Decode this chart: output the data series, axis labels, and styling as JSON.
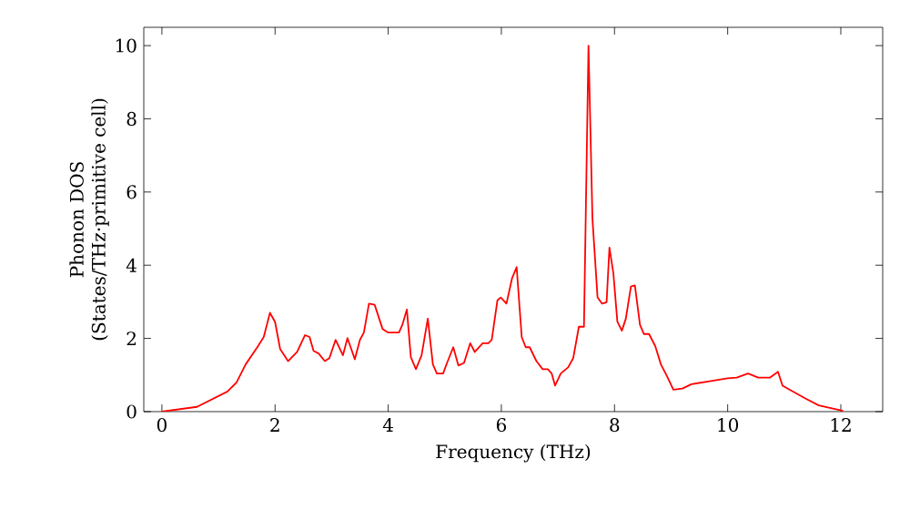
{
  "chart_data": {
    "type": "line",
    "xlabel": "Frequency (THz)",
    "ylabel": "Phonon DOS\n(States/THz·primitive cell)",
    "xlim": [
      -0.32,
      12.74
    ],
    "ylim": [
      0,
      10.5
    ],
    "xticks": [
      0,
      2,
      4,
      6,
      8,
      10,
      12
    ],
    "yticks": [
      0,
      2,
      4,
      6,
      8,
      10
    ],
    "marker": "none",
    "line_style": "solid",
    "series": [
      {
        "color": "#ff0000",
        "x": [
          0,
          0.62,
          1.16,
          1.32,
          1.48,
          1.7,
          1.8,
          1.91,
          2.0,
          2.09,
          2.23,
          2.39,
          2.53,
          2.61,
          2.68,
          2.77,
          2.88,
          2.96,
          3.07,
          3.2,
          3.28,
          3.41,
          3.5,
          3.57,
          3.66,
          3.76,
          3.9,
          4.0,
          4.19,
          4.25,
          4.33,
          4.4,
          4.49,
          4.59,
          4.7,
          4.79,
          4.86,
          4.97,
          5.04,
          5.15,
          5.24,
          5.34,
          5.45,
          5.53,
          5.67,
          5.77,
          5.83,
          5.93,
          5.99,
          6.09,
          6.19,
          6.27,
          6.36,
          6.43,
          6.5,
          6.62,
          6.73,
          6.82,
          6.89,
          6.95,
          7.05,
          7.18,
          7.27,
          7.37,
          7.46,
          7.54,
          7.61,
          7.7,
          7.78,
          7.86,
          7.91,
          7.98,
          8.05,
          8.13,
          8.2,
          8.29,
          8.36,
          8.45,
          8.52,
          8.61,
          8.72,
          8.82,
          8.93,
          9.04,
          9.2,
          9.36,
          9.68,
          10.0,
          10.16,
          10.36,
          10.54,
          10.75,
          10.89,
          10.97,
          11.35,
          11.61,
          12.04
        ],
        "values": [
          0,
          0.13,
          0.55,
          0.8,
          1.29,
          1.79,
          2.04,
          2.7,
          2.45,
          1.71,
          1.38,
          1.63,
          2.09,
          2.04,
          1.66,
          1.59,
          1.38,
          1.46,
          1.96,
          1.54,
          2.01,
          1.43,
          1.96,
          2.16,
          2.95,
          2.92,
          2.26,
          2.16,
          2.16,
          2.37,
          2.79,
          1.49,
          1.16,
          1.54,
          2.54,
          1.29,
          1.04,
          1.04,
          1.33,
          1.76,
          1.26,
          1.33,
          1.87,
          1.63,
          1.87,
          1.87,
          1.96,
          3.04,
          3.12,
          2.95,
          3.65,
          3.95,
          2.04,
          1.76,
          1.76,
          1.38,
          1.16,
          1.16,
          1.04,
          0.71,
          1.04,
          1.21,
          1.46,
          2.32,
          2.32,
          10.0,
          5.27,
          3.12,
          2.95,
          2.99,
          4.48,
          3.78,
          2.46,
          2.21,
          2.54,
          3.42,
          3.45,
          2.37,
          2.12,
          2.12,
          1.79,
          1.29,
          0.96,
          0.6,
          0.63,
          0.75,
          0.83,
          0.91,
          0.93,
          1.04,
          0.93,
          0.93,
          1.09,
          0.71,
          0.38,
          0.17,
          0.02
        ]
      }
    ]
  }
}
